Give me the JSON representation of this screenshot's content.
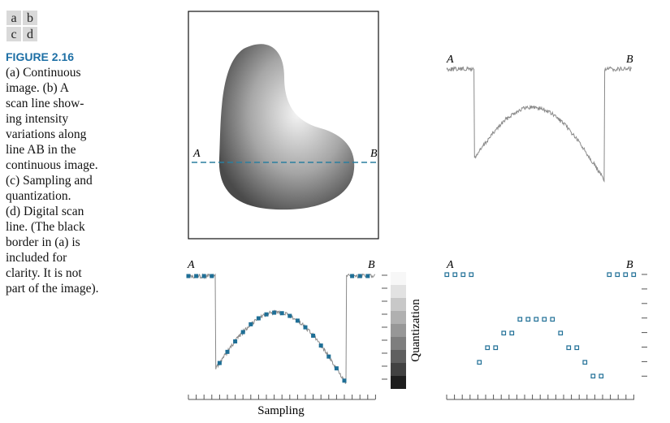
{
  "panel_labels": [
    "a",
    "b",
    "c",
    "d"
  ],
  "figure_title": "FIGURE 2.16",
  "caption_lines": [
    "(a) Continuous",
    "image. (b) A",
    "scan line show-",
    "ing intensity",
    "variations along",
    "line AB in the",
    "continuous image.",
    "(c) Sampling and",
    "quantization.",
    "(d) Digital scan",
    "line. (The black",
    "border in (a) is",
    "included for",
    "clarity. It is not",
    "part of the image)."
  ],
  "panel_a": {
    "start_label": "A",
    "end_label": "B"
  },
  "panel_b": {
    "start_label": "A",
    "end_label": "B"
  },
  "panel_c": {
    "start_label": "A",
    "end_label": "B",
    "vertical_axis_label": "Quantization",
    "horizontal_axis_label": "Sampling"
  },
  "panel_d": {
    "start_label": "A",
    "end_label": "B"
  }
}
